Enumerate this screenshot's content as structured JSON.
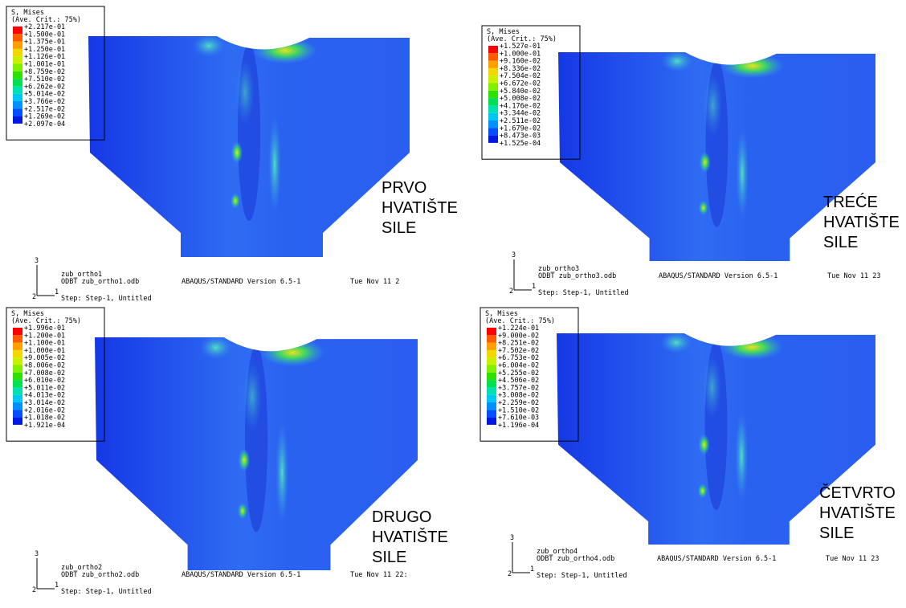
{
  "panels": [
    {
      "legend": {
        "title": "S, Mises",
        "subtitle": "(Ave. Crit.: 75%)",
        "values": [
          "+2.217e-01",
          "+1.500e-01",
          "+1.375e-01",
          "+1.250e-01",
          "+1.126e-01",
          "+1.001e-01",
          "+8.759e-02",
          "+7.510e-02",
          "+6.262e-02",
          "+5.014e-02",
          "+3.766e-02",
          "+2.517e-02",
          "+1.269e-02",
          "+2.097e-04"
        ]
      },
      "label": [
        "PRVO",
        "HVATIŠTE",
        "SILE"
      ],
      "triad": {
        "up": "3",
        "left": "2",
        "right": "1"
      },
      "footer": {
        "name": "zub_ortho1",
        "odb": "ODBT zub_ortho1.odb",
        "version": "ABAQUS/STANDARD Version 6.5-1",
        "date": "Tue Nov 11 2",
        "step": "Step: Step-1, Untitled"
      }
    },
    {
      "legend": {
        "title": "S, Mises",
        "subtitle": "(Ave. Crit.: 75%)",
        "values": [
          "+1.527e-01",
          "+1.000e-01",
          "+9.160e-02",
          "+8.336e-02",
          "+7.504e-02",
          "+6.672e-02",
          "+5.840e-02",
          "+5.008e-02",
          "+4.176e-02",
          "+3.344e-02",
          "+2.511e-02",
          "+1.679e-02",
          "+8.473e-03",
          "+1.525e-04"
        ]
      },
      "label": [
        "TREĆE",
        "HVATIŠTE",
        "SILE"
      ],
      "triad": {
        "up": "3",
        "left": "2",
        "right": "1"
      },
      "footer": {
        "name": "zub_ortho3",
        "odb": "ODBT zub_ortho3.odb",
        "version": "ABAQUS/STANDARD Version 6.5-1",
        "date": "Tue Nov 11 23",
        "step": "Step: Step-1, Untitled"
      }
    },
    {
      "legend": {
        "title": "S, Mises",
        "subtitle": "(Ave. Crit.: 75%)",
        "values": [
          "+1.996e-01",
          "+1.200e-01",
          "+1.100e-01",
          "+1.000e-01",
          "+9.005e-02",
          "+8.006e-02",
          "+7.008e-02",
          "+6.010e-02",
          "+5.011e-02",
          "+4.013e-02",
          "+3.014e-02",
          "+2.016e-02",
          "+1.018e-02",
          "+1.921e-04"
        ]
      },
      "label": [
        "DRUGO",
        "HVATIŠTE",
        "SILE"
      ],
      "triad": {
        "up": "3",
        "left": "2",
        "right": "1"
      },
      "footer": {
        "name": "zub_ortho2",
        "odb": "ODBT zub_ortho2.odb",
        "version": "ABAQUS/STANDARD Version 6.5-1",
        "date": "Tue Nov 11 22:",
        "step": "Step: Step-1, Untitled"
      }
    },
    {
      "legend": {
        "title": "S, Mises",
        "subtitle": "(Ave. Crit.: 75%)",
        "values": [
          "+1.224e-01",
          "+9.000e-02",
          "+8.251e-02",
          "+7.502e-02",
          "+6.753e-02",
          "+6.004e-02",
          "+5.255e-02",
          "+4.506e-02",
          "+3.757e-02",
          "+3.008e-02",
          "+2.259e-02",
          "+1.510e-02",
          "+7.610e-03",
          "+1.196e-04"
        ]
      },
      "label": [
        "ČETVRTO",
        "HVATIŠTE",
        "SILE"
      ],
      "triad": {
        "up": "3",
        "left": "2",
        "right": "1"
      },
      "footer": {
        "name": "zub_ortho4",
        "odb": "ODBT zub_ortho4.odb",
        "version": "ABAQUS/STANDARD Version 6.5-1",
        "date": "Tue Nov 11 23",
        "step": "Step: Step-1, Untitled"
      }
    }
  ]
}
